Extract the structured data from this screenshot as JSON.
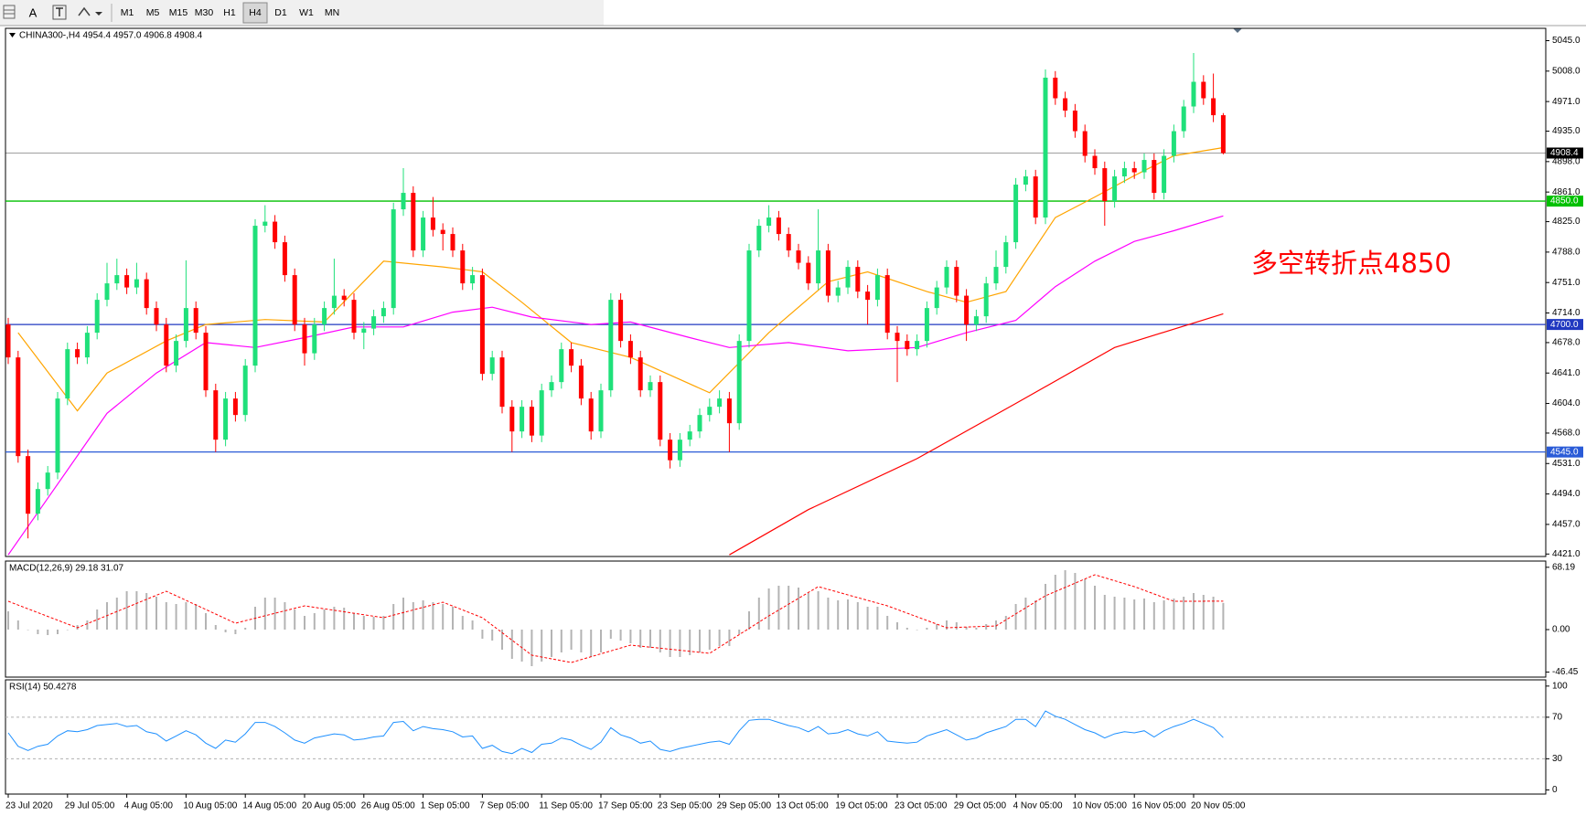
{
  "toolbar": {
    "font_tool": "A",
    "buttons": [
      {
        "label": "M1"
      },
      {
        "label": "M5"
      },
      {
        "label": "M15"
      },
      {
        "label": "M30"
      },
      {
        "label": "H1"
      },
      {
        "label": "H4",
        "pressed": true
      },
      {
        "label": "D1"
      },
      {
        "label": "W1"
      },
      {
        "label": "MN"
      }
    ]
  },
  "chart_data": [
    {
      "type": "candlestick",
      "title": "CHINA300-,H4 4954.4 4957.0 4906.8 4908.4",
      "categories": [
        "23 Jul 2020",
        null,
        null,
        null,
        null,
        null,
        "29 Jul 05:00",
        null,
        null,
        null,
        null,
        null,
        "4 Aug 05:00",
        null,
        null,
        null,
        null,
        null,
        "10 Aug 05:00",
        null,
        null,
        null,
        null,
        null,
        "14 Aug 05:00",
        null,
        null,
        null,
        null,
        null,
        "20 Aug 05:00",
        null,
        null,
        null,
        null,
        null,
        "26 Aug 05:00",
        null,
        null,
        null,
        null,
        null,
        "1 Sep 05:00",
        null,
        null,
        null,
        null,
        null,
        "7 Sep 05:00",
        null,
        null,
        null,
        null,
        null,
        "11 Sep 05:00",
        null,
        null,
        null,
        null,
        null,
        "17 Sep 05:00",
        null,
        null,
        null,
        null,
        null,
        "23 Sep 05:00",
        null,
        null,
        null,
        null,
        null,
        "29 Sep 05:00",
        null,
        null,
        null,
        null,
        null,
        "13 Oct 05:00",
        null,
        null,
        null,
        null,
        null,
        "19 Oct 05:00",
        null,
        null,
        null,
        null,
        null,
        "23 Oct 05:00",
        null,
        null,
        null,
        null,
        null,
        "29 Oct 05:00",
        null,
        null,
        null,
        null,
        null,
        "4 Nov 05:00",
        null,
        null,
        null,
        null,
        null,
        "10 Nov 05:00",
        null,
        null,
        null,
        null,
        null,
        "16 Nov 05:00",
        null,
        null,
        null,
        null,
        null,
        "20 Nov 05:00",
        null,
        null,
        null
      ],
      "open": [
        4700,
        4660,
        4540,
        4470,
        4500,
        4520,
        4610,
        4670,
        4660,
        4690,
        4730,
        4750,
        4760,
        4745,
        4755,
        4720,
        4700,
        4650,
        4680,
        4720,
        4690,
        4620,
        4560,
        4610,
        4590,
        4650,
        4820,
        4825,
        4800,
        4760,
        4700,
        4665,
        4700,
        4720,
        4735,
        4730,
        4690,
        4695,
        4710,
        4720,
        4840,
        4860,
        4790,
        4830,
        4815,
        4810,
        4790,
        4750,
        4760,
        4640,
        4660,
        4600,
        4570,
        4600,
        4565,
        4620,
        4630,
        4670,
        4650,
        4610,
        4570,
        4620,
        4730,
        4680,
        4660,
        4620,
        4630,
        4560,
        4535,
        4560,
        4570,
        4590,
        4600,
        4610,
        4580,
        4680,
        4790,
        4820,
        4830,
        4810,
        4790,
        4775,
        4750,
        4790,
        4735,
        4745,
        4770,
        4740,
        4730,
        4760,
        4690,
        4680,
        4670,
        4680,
        4720,
        4745,
        4770,
        4735,
        4700,
        4710,
        4750,
        4770,
        4800,
        4870,
        4880,
        4830,
        5000,
        4975,
        4960,
        4935,
        4905,
        4890,
        4850,
        4880,
        4890,
        4885,
        4900,
        4860,
        4905,
        4935,
        4965,
        4995,
        4975,
        4954.4
      ],
      "high": [
        4708,
        4668,
        4548,
        4508,
        4528,
        4618,
        4678,
        4678,
        4698,
        4738,
        4775,
        4780,
        4768,
        4775,
        4763,
        4728,
        4708,
        4688,
        4778,
        4728,
        4698,
        4628,
        4618,
        4618,
        4658,
        4828,
        4845,
        4833,
        4808,
        4768,
        4708,
        4708,
        4728,
        4780,
        4743,
        4738,
        4703,
        4718,
        4728,
        4848,
        4890,
        4868,
        4838,
        4855,
        4823,
        4818,
        4798,
        4770,
        4768,
        4668,
        4668,
        4608,
        4608,
        4608,
        4628,
        4638,
        4678,
        4678,
        4658,
        4618,
        4628,
        4738,
        4738,
        4688,
        4668,
        4638,
        4638,
        4568,
        4568,
        4578,
        4598,
        4610,
        4620,
        4618,
        4688,
        4798,
        4828,
        4845,
        4838,
        4818,
        4798,
        4783,
        4840,
        4798,
        4753,
        4778,
        4778,
        4748,
        4768,
        4768,
        4698,
        4688,
        4688,
        4728,
        4753,
        4778,
        4778,
        4743,
        4718,
        4758,
        4790,
        4808,
        4878,
        4888,
        4888,
        5010,
        5008,
        4983,
        4968,
        4943,
        4913,
        4898,
        4888,
        4898,
        4898,
        4908,
        4908,
        4913,
        4943,
        4973,
        5030,
        5003,
        5005,
        4957
      ],
      "low": [
        4652,
        4532,
        4440,
        4462,
        4492,
        4512,
        4602,
        4652,
        4652,
        4682,
        4722,
        4742,
        4737,
        4737,
        4712,
        4692,
        4642,
        4642,
        4672,
        4682,
        4612,
        4545,
        4552,
        4582,
        4582,
        4642,
        4812,
        4792,
        4752,
        4692,
        4650,
        4657,
        4692,
        4712,
        4722,
        4682,
        4670,
        4687,
        4702,
        4712,
        4832,
        4782,
        4782,
        4807,
        4790,
        4782,
        4742,
        4742,
        4632,
        4632,
        4592,
        4545,
        4562,
        4557,
        4557,
        4612,
        4622,
        4642,
        4602,
        4560,
        4562,
        4612,
        4672,
        4652,
        4612,
        4612,
        4552,
        4525,
        4527,
        4552,
        4562,
        4582,
        4592,
        4545,
        4572,
        4672,
        4782,
        4812,
        4802,
        4782,
        4767,
        4742,
        4742,
        4727,
        4727,
        4737,
        4732,
        4700,
        4722,
        4682,
        4630,
        4662,
        4662,
        4672,
        4712,
        4737,
        4727,
        4680,
        4692,
        4702,
        4742,
        4762,
        4792,
        4862,
        4822,
        4822,
        4967,
        4952,
        4927,
        4897,
        4882,
        4820,
        4842,
        4872,
        4877,
        4877,
        4852,
        4852,
        4897,
        4927,
        4957,
        4967,
        4946,
        4906.8
      ],
      "close": [
        4660,
        4540,
        4470,
        4500,
        4520,
        4610,
        4670,
        4660,
        4690,
        4730,
        4750,
        4760,
        4745,
        4755,
        4720,
        4700,
        4650,
        4680,
        4720,
        4690,
        4620,
        4560,
        4610,
        4590,
        4650,
        4820,
        4825,
        4800,
        4760,
        4700,
        4665,
        4700,
        4720,
        4735,
        4730,
        4690,
        4695,
        4710,
        4720,
        4840,
        4860,
        4790,
        4830,
        4815,
        4810,
        4790,
        4750,
        4760,
        4640,
        4660,
        4600,
        4570,
        4600,
        4565,
        4620,
        4630,
        4670,
        4650,
        4610,
        4570,
        4620,
        4730,
        4680,
        4660,
        4620,
        4630,
        4560,
        4535,
        4560,
        4570,
        4590,
        4600,
        4610,
        4580,
        4680,
        4790,
        4820,
        4830,
        4810,
        4790,
        4775,
        4750,
        4790,
        4735,
        4745,
        4770,
        4740,
        4730,
        4760,
        4690,
        4680,
        4670,
        4680,
        4720,
        4745,
        4770,
        4735,
        4700,
        4710,
        4750,
        4770,
        4800,
        4870,
        4880,
        4830,
        5000,
        4975,
        4960,
        4935,
        4905,
        4890,
        4850,
        4880,
        4890,
        4885,
        4900,
        4860,
        4905,
        4935,
        4965,
        4995,
        4975,
        4954.4,
        4908.4
      ],
      "up_color": "#1fe07a",
      "down_color": "#ff0000",
      "series": [
        {
          "color": "#ffa500",
          "x": [
            1,
            7,
            10,
            16,
            20,
            26,
            32,
            38,
            44,
            48,
            52,
            57,
            63,
            71,
            77,
            83,
            87,
            93,
            97,
            101,
            106,
            110,
            114,
            118,
            123
          ],
          "values": [
            4690,
            4595,
            4641,
            4680,
            4700,
            4706,
            4703,
            4777,
            4770,
            4764,
            4727,
            4678,
            4660,
            4617,
            4690,
            4752,
            4764,
            4740,
            4727,
            4740,
            4830,
            4855,
            4881,
            4905,
            4915
          ]
        },
        {
          "color": "#ff00ff",
          "x": [
            0,
            5,
            10,
            15,
            20,
            25,
            30,
            35,
            40,
            45,
            49,
            53,
            59,
            63,
            69,
            73,
            79,
            85,
            92,
            97,
            102,
            106,
            110,
            114,
            118,
            123
          ],
          "values": [
            4420,
            4506,
            4592,
            4641,
            4678,
            4672,
            4684,
            4697,
            4697,
            4715,
            4721,
            4709,
            4700,
            4703,
            4684,
            4672,
            4678,
            4668,
            4672,
            4690,
            4705,
            4746,
            4777,
            4801,
            4814,
            4832
          ]
        },
        {
          "color": "#ff0000",
          "x": [
            73,
            81,
            92,
            102,
            112,
            123
          ],
          "values": [
            4420,
            4475,
            4537,
            4604,
            4672,
            4713
          ]
        }
      ],
      "levels": [
        {
          "value": 4908.4,
          "color": "#000000"
        },
        {
          "value": 4850,
          "label": "4850.0",
          "color": "#00c000"
        },
        {
          "value": 4700,
          "label": "4700.0",
          "color": "#2038c0"
        },
        {
          "value": 4545,
          "label": "4545.0",
          "color": "#2a5bd7"
        }
      ],
      "annotation": {
        "text": "多空转折点4850",
        "color": "#ff0000"
      },
      "ylim": [
        4418,
        5060
      ],
      "yticks": [
        {
          "value": 5045,
          "label": "5045.0"
        },
        {
          "value": 5008,
          "label": "5008.0"
        },
        {
          "value": 4971,
          "label": "4971.0"
        },
        {
          "value": 4935,
          "label": "4935.0"
        },
        {
          "value": 4898,
          "label": "4898.0"
        },
        {
          "value": 4861,
          "label": "4861.0"
        },
        {
          "value": 4825,
          "label": "4825.0"
        },
        {
          "value": 4788,
          "label": "4788.0"
        },
        {
          "value": 4751,
          "label": "4751.0"
        },
        {
          "value": 4714,
          "label": "4714.0"
        },
        {
          "value": 4678,
          "label": "4678.0"
        },
        {
          "value": 4641,
          "label": "4641.0"
        },
        {
          "value": 4604,
          "label": "4604.0"
        },
        {
          "value": 4568,
          "label": "4568.0"
        },
        {
          "value": 4531,
          "label": "4531.0"
        },
        {
          "value": 4494,
          "label": "4494.0"
        },
        {
          "value": 4457,
          "label": "4457.0"
        },
        {
          "value": 4421,
          "label": "4421.0"
        }
      ]
    },
    {
      "type": "macd",
      "title": "MACD(12,26,9) 29.18 31.07",
      "histogram": [
        20,
        10,
        0,
        -5,
        -6,
        -5,
        0,
        5,
        10,
        22,
        30,
        35,
        42,
        42,
        40,
        36,
        30,
        28,
        30,
        28,
        18,
        5,
        -3,
        -5,
        2,
        25,
        35,
        35,
        30,
        22,
        15,
        18,
        22,
        25,
        24,
        18,
        15,
        14,
        15,
        28,
        35,
        30,
        32,
        30,
        28,
        25,
        15,
        10,
        -10,
        -12,
        -22,
        -32,
        -35,
        -40,
        -35,
        -30,
        -25,
        -22,
        -25,
        -30,
        -25,
        -10,
        -12,
        -15,
        -20,
        -20,
        -25,
        -30,
        -30,
        -28,
        -25,
        -22,
        -18,
        -18,
        -5,
        20,
        35,
        45,
        48,
        48,
        46,
        40,
        42,
        35,
        32,
        33,
        30,
        25,
        25,
        15,
        8,
        2,
        0,
        2,
        6,
        10,
        8,
        3,
        2,
        6,
        10,
        15,
        28,
        35,
        32,
        50,
        60,
        65,
        62,
        55,
        48,
        38,
        36,
        35,
        33,
        34,
        30,
        32,
        34,
        36,
        40,
        38,
        36,
        29.18
      ],
      "hist_color": "#b4b4b4",
      "signal": {
        "color": "#ff0000",
        "x": [
          0,
          7,
          16,
          23,
          30,
          38,
          44,
          48,
          53,
          57,
          63,
          71,
          77,
          82,
          89,
          95,
          100,
          105,
          110,
          114,
          118,
          123
        ],
        "values": [
          31,
          2,
          42,
          7,
          26,
          13,
          30,
          13,
          -28,
          -36,
          -17,
          -26,
          15,
          47,
          26,
          2,
          4,
          37,
          60,
          47,
          31,
          31.07
        ]
      },
      "ylim": [
        -52,
        75
      ],
      "yticks": [
        68.19,
        {
          "value": 0,
          "label": "0.00"
        },
        -46.45
      ]
    },
    {
      "type": "rsi",
      "title": "RSI(14) 50.4278",
      "values": [
        55,
        42,
        38,
        42,
        44,
        52,
        57,
        56,
        58,
        62,
        63,
        64,
        61,
        62,
        56,
        54,
        47,
        52,
        57,
        53,
        45,
        40,
        48,
        46,
        54,
        65,
        65,
        61,
        55,
        48,
        45,
        50,
        52,
        54,
        53,
        48,
        49,
        51,
        52,
        65,
        66,
        57,
        61,
        59,
        58,
        56,
        51,
        52,
        40,
        43,
        37,
        35,
        40,
        36,
        44,
        45,
        50,
        48,
        43,
        39,
        46,
        60,
        53,
        50,
        45,
        47,
        39,
        37,
        40,
        42,
        44,
        46,
        47,
        44,
        57,
        67,
        68,
        68,
        65,
        62,
        60,
        56,
        61,
        54,
        55,
        58,
        54,
        52,
        56,
        47,
        46,
        45,
        46,
        52,
        55,
        58,
        53,
        48,
        50,
        55,
        58,
        61,
        68,
        68,
        61,
        76,
        71,
        68,
        63,
        58,
        55,
        50,
        54,
        56,
        55,
        57,
        51,
        57,
        61,
        64,
        68,
        64,
        60,
        50.4278
      ],
      "color": "#1e90ff",
      "levels": [
        70,
        30
      ],
      "ylim": [
        -4,
        106
      ],
      "yticks": [
        100,
        70,
        30,
        0
      ]
    }
  ]
}
